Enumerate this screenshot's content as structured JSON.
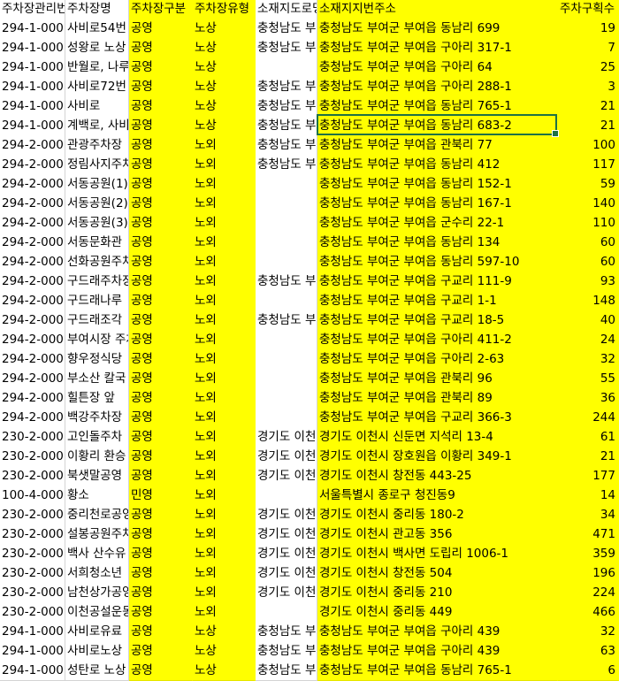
{
  "headers": [
    "주차장관리번호",
    "주차장명",
    "주차장구분",
    "주차장유형",
    "소재지도로명주소",
    "소재지지번주소",
    "주차구획수"
  ],
  "rows": [
    [
      "294-1-000",
      "사비로54번",
      "공영",
      "노상",
      "충청남도 부여군",
      "충청남도 부여군 부여읍 동남리 699",
      "19"
    ],
    [
      "294-1-000",
      "성왕로 노상",
      "공영",
      "노상",
      "충청남도 부여군",
      "충청남도 부여군 부여읍 구아리 317-1",
      "7"
    ],
    [
      "294-1-000",
      "반월로, 나루",
      "공영",
      "노상",
      "",
      "충청남도 부여군 부여읍 구아리 64",
      "25"
    ],
    [
      "294-1-000",
      "사비로72번",
      "공영",
      "노상",
      "충청남도 부여군",
      "충청남도 부여군 부여읍 구아리 288-1",
      "3"
    ],
    [
      "294-1-000",
      "사비로",
      "공영",
      "노상",
      "충청남도 부여군",
      "충청남도 부여군 부여읍 동남리 765-1",
      "21"
    ],
    [
      "294-1-000",
      "계백로, 사비",
      "공영",
      "노상",
      "충청남도 부여군",
      "충청남도 부여군 부여읍 동남리 683-2",
      "21"
    ],
    [
      "294-2-000",
      "관광주차장",
      "공영",
      "노외",
      "충청남도 부여군",
      "충청남도 부여군 부여읍 관북리 77",
      "100"
    ],
    [
      "294-2-000",
      "정림사지주차",
      "공영",
      "노외",
      "충청남도 부여군",
      "충청남도 부여군 부여읍 동남리 412",
      "117"
    ],
    [
      "294-2-000",
      "서동공원(1)",
      "공영",
      "노외",
      "",
      "충청남도 부여군 부여읍 동남리 152-1",
      "59"
    ],
    [
      "294-2-000",
      "서동공원(2)",
      "공영",
      "노외",
      "",
      "충청남도 부여군 부여읍 동남리 167-1",
      "140"
    ],
    [
      "294-2-000",
      "서동공원(3)",
      "공영",
      "노외",
      "",
      "충청남도 부여군 부여읍 군수리 22-1",
      "110"
    ],
    [
      "294-2-000",
      "서동문화관",
      "공영",
      "노외",
      "",
      "충청남도 부여군 부여읍 동남리 134",
      "60"
    ],
    [
      "294-2-000",
      "선화공원주차",
      "공영",
      "노외",
      "",
      "충청남도 부여군 부여읍 동남리 597-10",
      "60"
    ],
    [
      "294-2-000",
      "구드래주차장",
      "공영",
      "노외",
      "충청남도 부여군",
      "충청남도 부여군 부여읍 구교리 111-9",
      "93"
    ],
    [
      "294-2-000",
      "구드래나루",
      "공영",
      "노외",
      "",
      "충청남도 부여군 부여읍 구교리 1-1",
      "148"
    ],
    [
      "294-2-000",
      "구드래조각",
      "공영",
      "노외",
      "충청남도 부여군",
      "충청남도 부여군 부여읍 구교리 18-5",
      "40"
    ],
    [
      "294-2-000",
      "부여시장 주차",
      "공영",
      "노외",
      "",
      "충청남도 부여군 부여읍 구아리 411-2",
      "24"
    ],
    [
      "294-2-000",
      "향우정식당",
      "공영",
      "노외",
      "",
      "충청남도 부여군 부여읍 구아리 2-63",
      "32"
    ],
    [
      "294-2-000",
      "부소산 칼국",
      "공영",
      "노외",
      "",
      "충청남도 부여군 부여읍 관북리 96",
      "55"
    ],
    [
      "294-2-000",
      "힐튼장 앞",
      "공영",
      "노외",
      "",
      "충청남도 부여군 부여읍 관북리 89",
      "36"
    ],
    [
      "294-2-000",
      "백강주차장",
      "공영",
      "노외",
      "",
      "충청남도 부여군 부여읍 구교리 366-3",
      "244"
    ],
    [
      "230-2-000",
      "고인돌주차",
      "공영",
      "노외",
      "경기도 이천시",
      "경기도 이천시 신둔면 지석리 13-4",
      "61"
    ],
    [
      "230-2-000",
      "이황리 환승",
      "공영",
      "노외",
      "경기도 이천시",
      "경기도 이천시 장호원읍 이황리 349-1",
      "21"
    ],
    [
      "230-2-000",
      "북샛말공영",
      "공영",
      "노외",
      "경기도 이천시",
      "경기도 이천시 창전동 443-25",
      "177"
    ],
    [
      "100-4-000",
      "황소",
      "민영",
      "노외",
      "",
      "서울특별시 종로구 청진동9",
      "14"
    ],
    [
      "230-2-000",
      "중리천로공영",
      "공영",
      "노외",
      "경기도 이천시",
      "경기도 이천시 중리동 180-2",
      "34"
    ],
    [
      "230-2-000",
      "설봉공원주차",
      "공영",
      "노외",
      "경기도 이천시",
      "경기도 이천시 관고동 356",
      "471"
    ],
    [
      "230-2-000",
      "백사 산수유",
      "공영",
      "노외",
      "경기도 이천시",
      "경기도 이천시 백사면 도립리 1006-1",
      "359"
    ],
    [
      "230-2-000",
      "서희청소년",
      "공영",
      "노외",
      "경기도 이천시",
      "경기도 이천시 창전동 504",
      "196"
    ],
    [
      "230-2-000",
      "남천상가공영",
      "공영",
      "노외",
      "경기도 이천시",
      "경기도 이천시 중리동 210",
      "224"
    ],
    [
      "230-2-000",
      "이천공설운동",
      "공영",
      "노외",
      "",
      "경기도 이천시 중리동 449",
      "466"
    ],
    [
      "294-1-000",
      "사비로유료",
      "공영",
      "노상",
      "충청남도 부여군",
      "충청남도 부여군 부여읍 구아리 439",
      "32"
    ],
    [
      "294-1-000",
      "사비로노상",
      "공영",
      "노상",
      "충청남도 부여군",
      "충청남도 부여군 부여읍 구아리 439",
      "63"
    ],
    [
      "294-1-000",
      "성탄로 노상",
      "공영",
      "노상",
      "충청남도 부여군",
      "충청남도 부여군 부여읍 동남리 765-1",
      "6"
    ]
  ],
  "highlight_color": "#ffff00",
  "selection_color": "#1e7145"
}
